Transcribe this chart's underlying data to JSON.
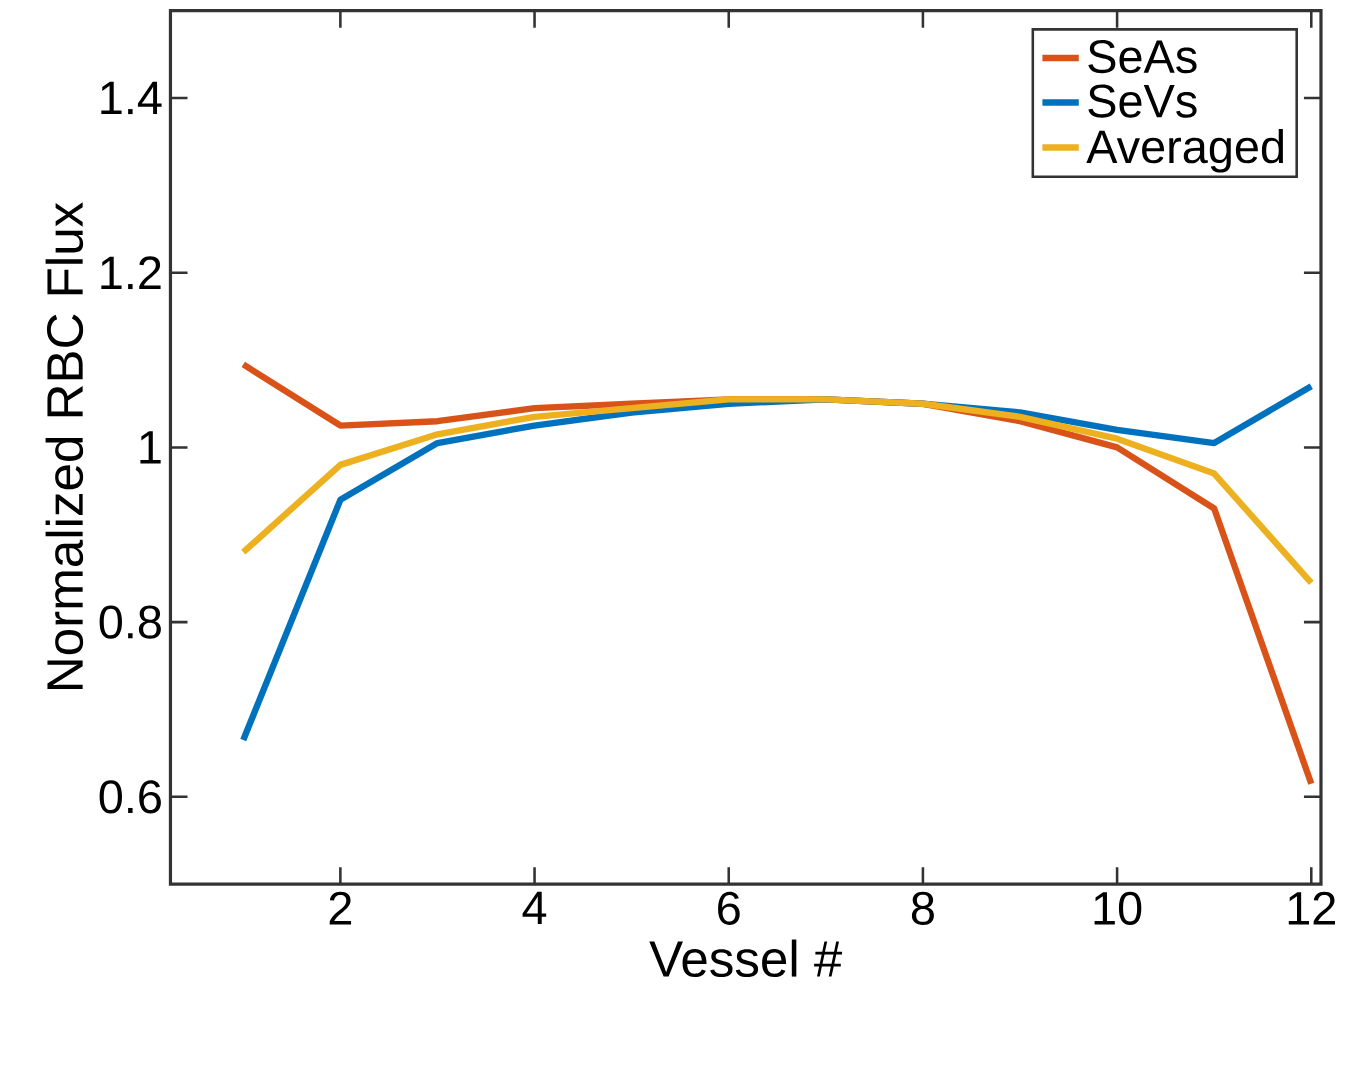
{
  "chart_data": {
    "type": "line",
    "xlabel": "Vessel #",
    "ylabel": "Normalized RBC Flux",
    "x": [
      1,
      2,
      3,
      4,
      5,
      6,
      7,
      8,
      9,
      10,
      11,
      12
    ],
    "series": [
      {
        "name": "SeAs",
        "color": "#d95319",
        "values": [
          1.095,
          1.025,
          1.03,
          1.045,
          1.05,
          1.055,
          1.055,
          1.05,
          1.03,
          1.0,
          0.93,
          0.615
        ]
      },
      {
        "name": "SeVs",
        "color": "#0072bd",
        "values": [
          0.665,
          0.94,
          1.005,
          1.025,
          1.04,
          1.05,
          1.055,
          1.05,
          1.04,
          1.02,
          1.005,
          1.07
        ]
      },
      {
        "name": "Averaged",
        "color": "#edb120",
        "values": [
          0.88,
          0.98,
          1.015,
          1.035,
          1.045,
          1.055,
          1.055,
          1.05,
          1.035,
          1.01,
          0.97,
          0.845
        ]
      }
    ],
    "xlim": [
      0.25,
      12.1
    ],
    "ylim": [
      0.5,
      1.5
    ],
    "xticks": [
      2,
      4,
      6,
      8,
      10,
      12
    ],
    "yticks": [
      0.6,
      0.8,
      1,
      1.2,
      1.4
    ],
    "legend": "top right",
    "grid": false,
    "line_style": "solid",
    "marker": "none"
  }
}
